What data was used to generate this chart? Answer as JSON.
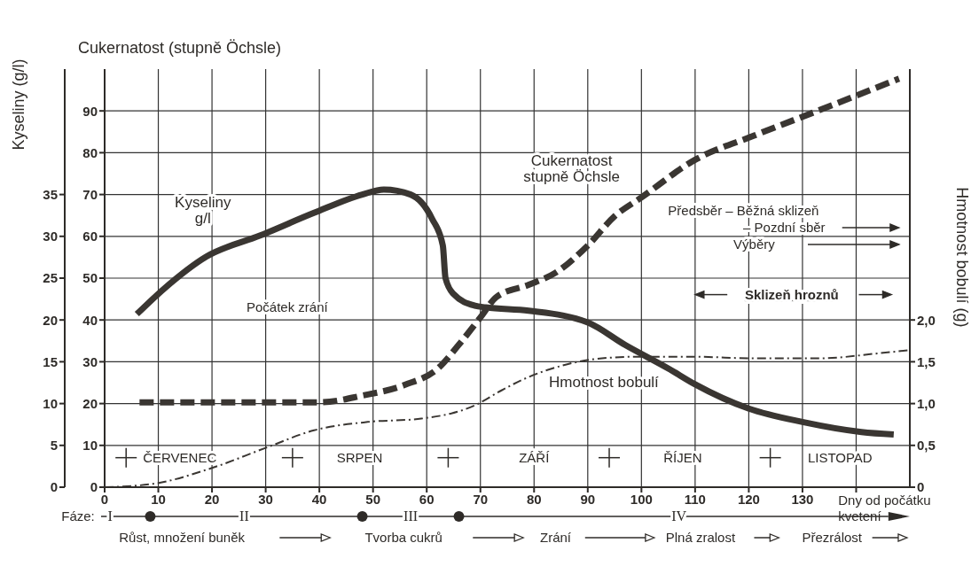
{
  "chart_data": {
    "type": "line",
    "ylabel": "Cukernatost (stupně Öchsle)",
    "y2label": "Kyseliny (g/l)",
    "y3label": "Hmotnost bobulí (g)",
    "xlabel": "Dny od počátku\nkvetení",
    "xlim": [
      0,
      150
    ],
    "xticks": [
      0,
      10,
      20,
      30,
      40,
      50,
      60,
      70,
      80,
      90,
      100,
      110,
      120,
      130,
      {
        "value": 140,
        "label": null
      }
    ],
    "ylim": [
      0,
      100
    ],
    "yticks": [
      0,
      10,
      20,
      30,
      40,
      50,
      60,
      70,
      80,
      90
    ],
    "y2lim": [
      0,
      50
    ],
    "y2ticks": [
      0,
      5,
      10,
      15,
      20,
      25,
      30,
      35
    ],
    "y3lim": [
      0,
      5
    ],
    "y3ticks": [
      0,
      {
        "value": 0.5,
        "label": "0,5"
      },
      {
        "value": 1,
        "label": "1,0"
      },
      {
        "value": 1.5,
        "label": "1,5"
      },
      {
        "value": 2,
        "label": "2,0"
      }
    ],
    "grid": true,
    "marker": "none",
    "series": [
      {
        "name": "Kyseliny\ng/l",
        "axis": "y2",
        "color": "#3a3632",
        "line_style": "solid",
        "x": [
          6,
          11,
          19,
          29,
          39,
          48,
          52,
          57,
          61,
          63,
          63.5,
          65,
          69,
          71,
          79,
          90,
          97,
          105,
          110,
          120,
          130,
          141,
          147
        ],
        "values": [
          20.7,
          23.7,
          27.6,
          30.1,
          32.8,
          35,
          35.6,
          35,
          32.1,
          28.9,
          25,
          23.1,
          21.7,
          21.5,
          21.1,
          19.7,
          17,
          14.2,
          12.3,
          9.4,
          7.8,
          6.6,
          6.3
        ]
      },
      {
        "name": "Cukernatost\nstupně Öchsle",
        "color": "#3a3632",
        "line_style": "dashed",
        "x": [
          6.5,
          20,
          30,
          40,
          48,
          56,
          62,
          66,
          70,
          73,
          79,
          84,
          90,
          95,
          100,
          110,
          121,
          133,
          148
        ],
        "values": [
          20.3,
          20.3,
          20.3,
          20.3,
          21.9,
          24.5,
          28.3,
          34.1,
          40.6,
          45.5,
          48.4,
          51.3,
          57.8,
          64.8,
          69.3,
          78.3,
          84.1,
          90.1,
          97.7
        ]
      },
      {
        "name": "Hmotnost bobulí",
        "axis": "y3",
        "color": "#3a3632",
        "line_style": "dashdot",
        "x": [
          0,
          9,
          20,
          30,
          39,
          49,
          59,
          69,
          74,
          78,
          85,
          91,
          99,
          110,
          121,
          133,
          144,
          150
        ],
        "values": [
          0,
          0.04,
          0.23,
          0.47,
          0.68,
          0.78,
          0.82,
          0.98,
          1.16,
          1.29,
          1.45,
          1.53,
          1.56,
          1.56,
          1.54,
          1.54,
          1.6,
          1.64
        ]
      }
    ],
    "annotations": [
      "Počátek zrání",
      "Předsběr – Běžná sklizeň",
      "– Pozdní sběr",
      "Výběry",
      "Sklizeň hroznů",
      "ČERVENEC",
      "SRPEN",
      "ZÁŘÍ",
      "ŘÍJEN",
      "LISTOPAD",
      "Fáze:",
      "I",
      "II",
      "III",
      "IV",
      "Růst, množení buněk",
      "Tvorba cukrů",
      "Zrání",
      "Plná zralost",
      "Přezrálost"
    ]
  }
}
